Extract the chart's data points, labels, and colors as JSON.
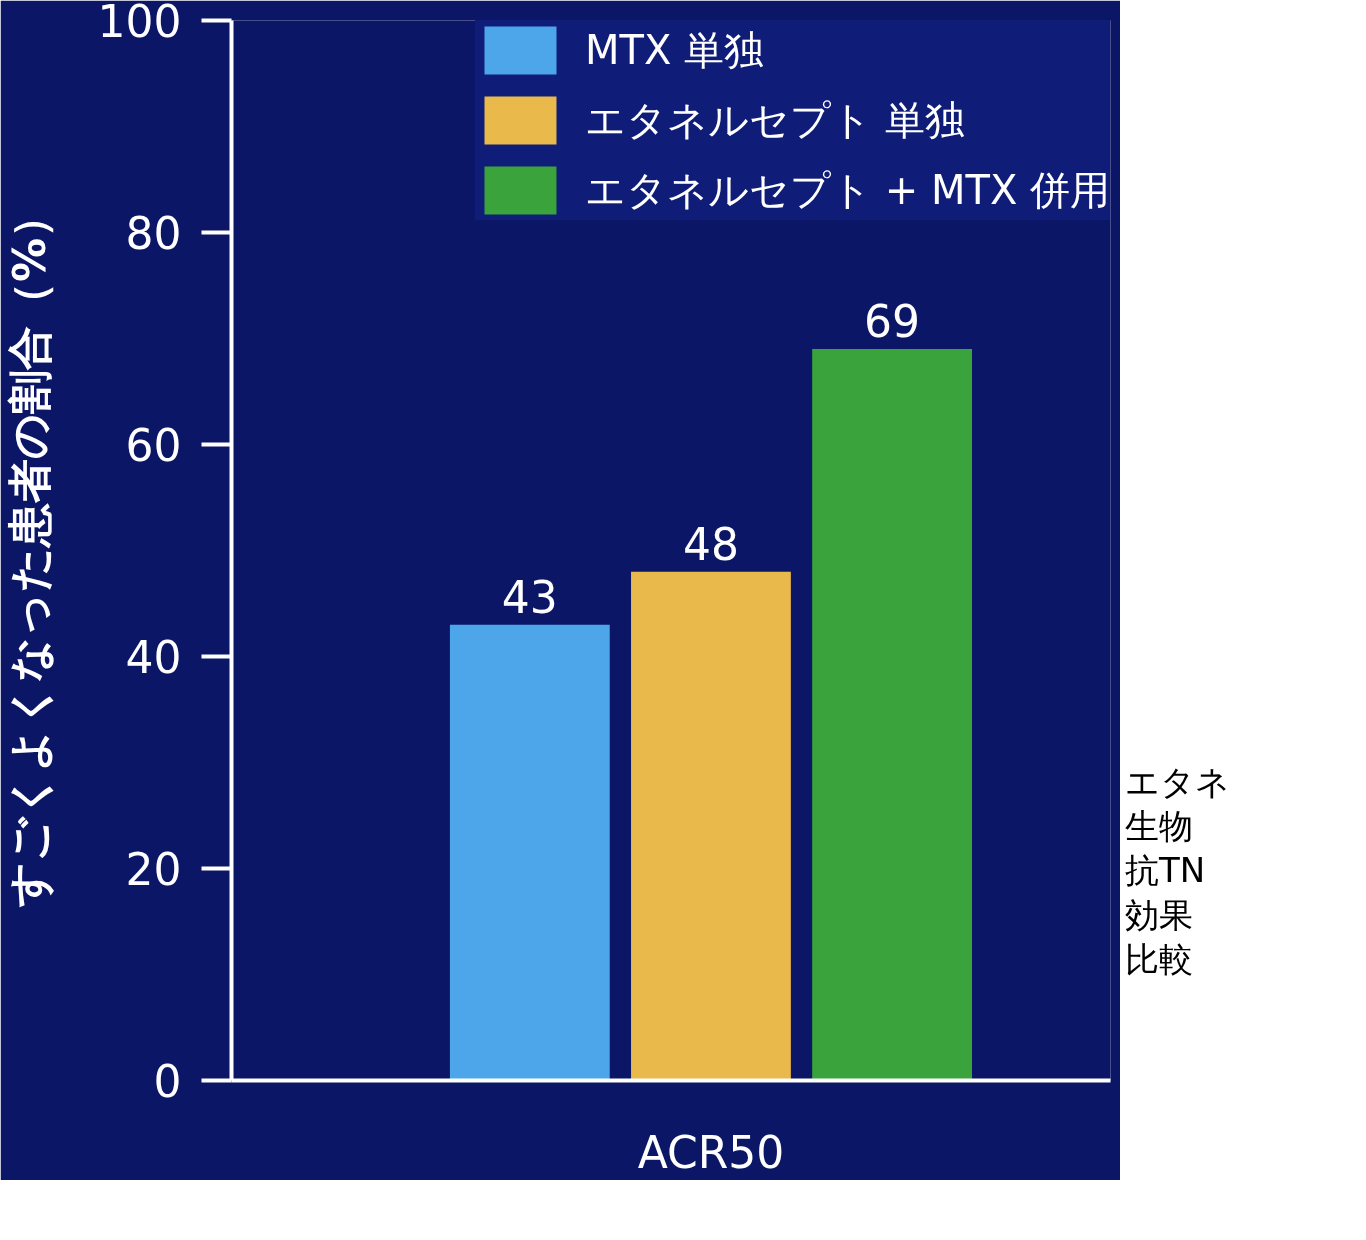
{
  "chart_data": {
    "type": "bar",
    "ylabel": "すごくよくなった患者の割合（%）",
    "categories": [
      "ACR50"
    ],
    "series": [
      {
        "name": "MTX 単独",
        "color": "#4ea6ea",
        "values": [
          43
        ]
      },
      {
        "name": "エタネルセプト 単独",
        "color": "#e9b94c",
        "values": [
          48
        ]
      },
      {
        "name": "エタネルセプト + MTX 併用",
        "color": "#3ba33b",
        "values": [
          69
        ]
      }
    ],
    "ylim": [
      0,
      100
    ],
    "yticks": [
      0,
      20,
      40,
      60,
      80,
      100
    ],
    "data_labels": true,
    "legend": "top right",
    "grid": false,
    "annotations": [
      "エタネ",
      "生物",
      "抗TN",
      "効果",
      "比較"
    ]
  }
}
